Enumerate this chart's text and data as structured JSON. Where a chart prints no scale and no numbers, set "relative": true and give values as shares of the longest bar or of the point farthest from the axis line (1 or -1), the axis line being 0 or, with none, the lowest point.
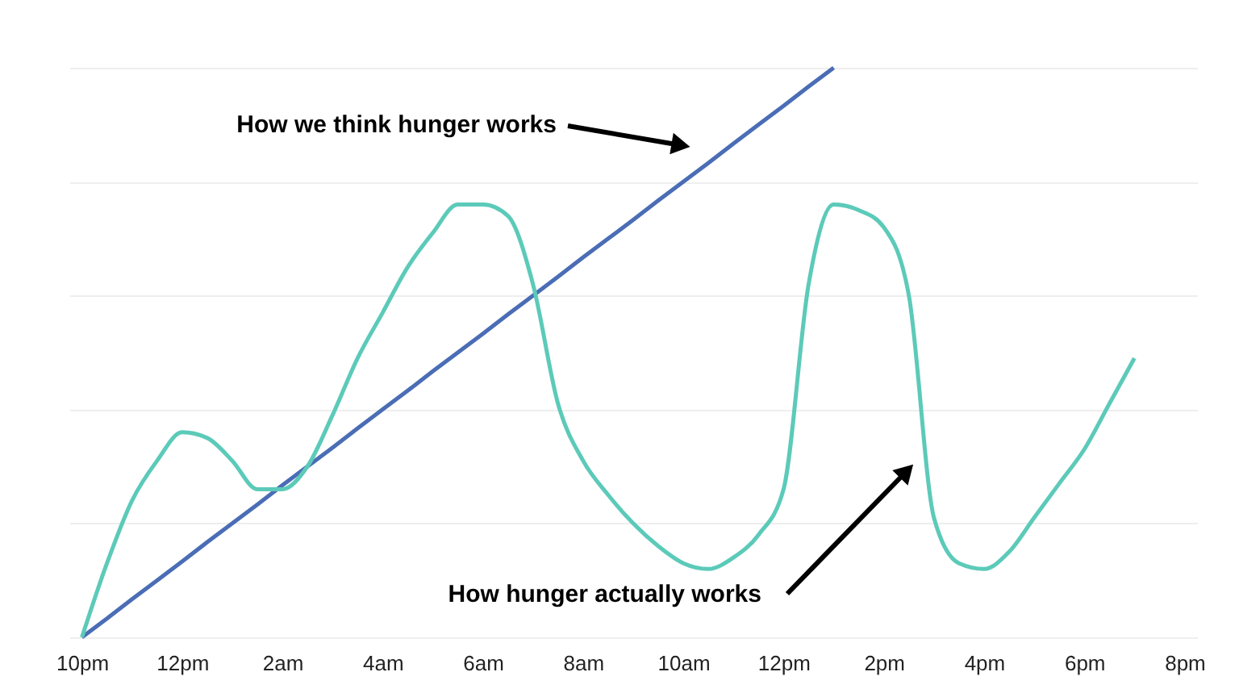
{
  "chart_data": {
    "type": "line",
    "relative": true,
    "grid": "y",
    "marker": "none",
    "line_style": "solid",
    "categories": [
      "10pm",
      null,
      null,
      null,
      "12pm",
      null,
      null,
      null,
      "2am",
      null,
      null,
      null,
      "4am",
      null,
      null,
      null,
      "6am",
      null,
      null,
      null,
      "8am",
      null,
      null,
      null,
      "10am",
      null,
      null,
      null,
      "12pm",
      null,
      null,
      null,
      "2pm",
      null,
      null,
      null,
      "4pm",
      null,
      null,
      null,
      "6pm",
      null,
      null,
      null,
      "8pm"
    ],
    "series": [
      {
        "color": "#4a6db5",
        "values": [
          0,
          0.033,
          0.067,
          0.1,
          0.133,
          0.167,
          0.2,
          0.233,
          0.267,
          0.3,
          0.333,
          0.367,
          0.4,
          0.433,
          0.467,
          0.5,
          0.533,
          0.567,
          0.6,
          0.633,
          0.667,
          0.7,
          0.733,
          0.767,
          0.8,
          0.833,
          0.867,
          0.9,
          0.933,
          0.967,
          1,
          null,
          null,
          null,
          null,
          null,
          null,
          null,
          null,
          null,
          null,
          null,
          null,
          null,
          null
        ]
      },
      {
        "color": "#5ccab9",
        "values": [
          0,
          0.13,
          0.24,
          0.31,
          0.36,
          0.35,
          0.31,
          0.26,
          0.26,
          0.3,
          0.39,
          0.49,
          0.57,
          0.65,
          0.71,
          0.76,
          0.76,
          0.74,
          0.62,
          0.41,
          0.31,
          0.25,
          0.2,
          0.16,
          0.13,
          0.12,
          0.14,
          0.18,
          0.26,
          0.62,
          0.76,
          0.75,
          0.72,
          0.6,
          0.21,
          0.13,
          0.12,
          0.15,
          0.21,
          0.27,
          0.33,
          0.41,
          0.49,
          null,
          null
        ]
      }
    ],
    "annotations": [
      "How we think hunger works",
      "How hunger actually works"
    ]
  }
}
